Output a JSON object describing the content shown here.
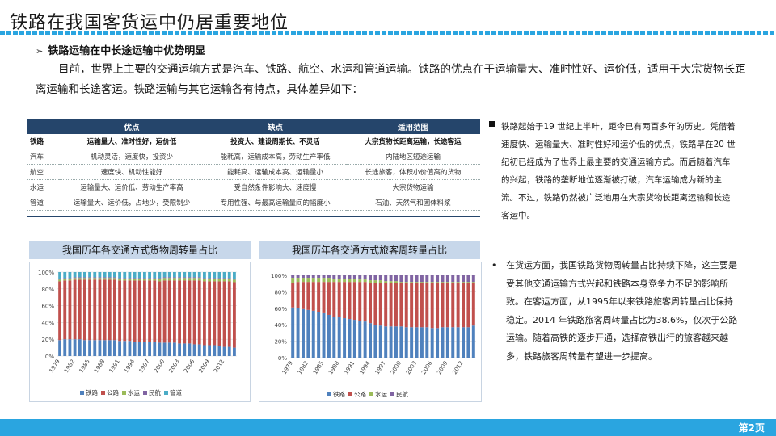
{
  "page": {
    "title": "铁路在我国客货运中仍居重要地位",
    "page_number": "第2页"
  },
  "section": {
    "arrow": "➢",
    "heading": "铁路运输在中长途运输中优势明显",
    "paragraph": "目前，世界上主要的交通运输方式是汽车、铁路、航空、水运和管道运输。铁路的优点在于运输量大、准时性好、运价低，适用于大宗货物长距离运输和长途客运。铁路运输与其它运输各有特点，具体差异如下："
  },
  "table": {
    "groups": [
      "优点",
      "缺点",
      "适用范围"
    ],
    "subheader": [
      "铁路",
      "运输量大、准时性好，运价低",
      "投资大、建设周期长、不灵活",
      "大宗货物长距离运输，长途客运"
    ],
    "rows": [
      [
        "汽车",
        "机动灵活，速度快，投资少",
        "能耗高，运输成本高，劳动生产率低",
        "内陆地区短途运输"
      ],
      [
        "航空",
        "速度快、机动性能好",
        "能耗高、运输成本高、运输量小",
        "长途旅客，体积小价值高的货物"
      ],
      [
        "水运",
        "运输量大、运价低、劳动生产率高",
        "受自然条件影响大、速度慢",
        "大宗货物运输"
      ],
      [
        "管道",
        "运输量大、运价低，占地少，受限制少",
        "专用性强、与最高运输量间的幅度小",
        "石油、天然气和固体料浆"
      ]
    ]
  },
  "side_note_1": "铁路起始于19 世纪上半叶，距今已有两百多年的历史。凭借着速度快、运输量大、准时性好和运价低的优点，铁路早在20 世纪初已经成为了世界上最主要的交通运输方式。而后随着汽车的兴起，铁路的垄断地位逐渐被打破，汽车运输成为新的主流。不过，铁路仍然被广泛地用在大宗货物长距离运输和长途客运中。",
  "side_note_2": {
    "bullet": "•",
    "text": "在货运方面，我国铁路货物周转量占比持续下降，这主要是受其他交通运输方式兴起和铁路本身竞争力不足的影响所致。在客运方面，从1995年以来铁路旅客周转量占比保持稳定。2014 年铁路旅客周转量占比为38.6%，仅次于公路运输。随着高铁的逐步开通，选择高铁出行的旅客越来越多，铁路旅客周转量有望进一步提高。"
  },
  "charts": {
    "freight_title": "我国历年各交通方式货物周转量占比",
    "passenger_title": "我国历年各交通方式旅客周转量占比"
  },
  "chart_data": [
    {
      "type": "bar",
      "stacked": true,
      "title": "我国历年各交通方式货物周转量占比",
      "x": [
        1979,
        1980,
        1981,
        1982,
        1983,
        1984,
        1985,
        1986,
        1987,
        1988,
        1989,
        1990,
        1991,
        1992,
        1993,
        1994,
        1995,
        1996,
        1997,
        1998,
        1999,
        2000,
        2001,
        2002,
        2003,
        2004,
        2005,
        2006,
        2007,
        2008,
        2009,
        2010,
        2011,
        2012,
        2013,
        2014
      ],
      "x_tick_labels": [
        "1979",
        "1982",
        "1985",
        "1988",
        "1991",
        "1994",
        "1997",
        "2000",
        "2003",
        "2006",
        "2009",
        "2012"
      ],
      "ylim": [
        0,
        100
      ],
      "y_tick_labels": [
        "0%",
        "20%",
        "40%",
        "60%",
        "80%",
        "100%"
      ],
      "legend": [
        "铁路",
        "公路",
        "水运",
        "民航",
        "管道"
      ],
      "legend_position": "bottom",
      "colors": [
        "#4f81bd",
        "#c0504d",
        "#9bbb59",
        "#8064a2",
        "#4bacc6"
      ],
      "series": [
        {
          "name": "铁路",
          "values": [
            19,
            20,
            20,
            20,
            20,
            19,
            19,
            19,
            19,
            19,
            19,
            19,
            18,
            18,
            18,
            17,
            17,
            17,
            17,
            17,
            16,
            16,
            16,
            16,
            15,
            15,
            15,
            14,
            14,
            13,
            13,
            13,
            12,
            11,
            11,
            10
          ]
        },
        {
          "name": "公路",
          "values": [
            70,
            70,
            70,
            71,
            71,
            72,
            72,
            72,
            72,
            72,
            72,
            72,
            72,
            72,
            72,
            73,
            73,
            73,
            73,
            73,
            73,
            74,
            74,
            74,
            75,
            75,
            75,
            76,
            76,
            76,
            76,
            76,
            77,
            78,
            78,
            78
          ]
        },
        {
          "name": "水运",
          "values": [
            2,
            2,
            2,
            2,
            2,
            2,
            2,
            2,
            2,
            2,
            2,
            2,
            2,
            2,
            2,
            2,
            2,
            2,
            2,
            2,
            3,
            3,
            3,
            3,
            3,
            3,
            3,
            3,
            3,
            3,
            3,
            3,
            3,
            3,
            3,
            3
          ]
        },
        {
          "name": "民航",
          "values": [
            1,
            1,
            1,
            1,
            1,
            1,
            1,
            1,
            1,
            1,
            1,
            1,
            1,
            1,
            1,
            1,
            1,
            1,
            1,
            1,
            1,
            1,
            1,
            1,
            1,
            1,
            1,
            1,
            1,
            1,
            1,
            1,
            1,
            1,
            1,
            1
          ]
        },
        {
          "name": "管道",
          "values": [
            8,
            7,
            7,
            6,
            6,
            6,
            6,
            6,
            6,
            6,
            6,
            6,
            7,
            7,
            7,
            7,
            7,
            7,
            7,
            7,
            7,
            6,
            6,
            6,
            6,
            6,
            6,
            6,
            6,
            7,
            7,
            7,
            7,
            7,
            7,
            8
          ]
        }
      ]
    },
    {
      "type": "bar",
      "stacked": true,
      "title": "我国历年各交通方式旅客周转量占比",
      "x": [
        1979,
        1980,
        1981,
        1982,
        1983,
        1984,
        1985,
        1986,
        1987,
        1988,
        1989,
        1990,
        1991,
        1992,
        1993,
        1994,
        1995,
        1996,
        1997,
        1998,
        1999,
        2000,
        2001,
        2002,
        2003,
        2004,
        2005,
        2006,
        2007,
        2008,
        2009,
        2010,
        2011,
        2012,
        2013,
        2014
      ],
      "x_tick_labels": [
        "1979",
        "1982",
        "1985",
        "1988",
        "1991",
        "1994",
        "1997",
        "2000",
        "2003",
        "2006",
        "2009",
        "2012"
      ],
      "ylim": [
        0,
        100
      ],
      "y_tick_labels": [
        "0%",
        "20%",
        "40%",
        "60%",
        "80%",
        "100%"
      ],
      "legend": [
        "铁路",
        "公路",
        "水运",
        "民航"
      ],
      "legend_position": "bottom",
      "colors": [
        "#4f81bd",
        "#c0504d",
        "#9bbb59",
        "#8064a2"
      ],
      "series": [
        {
          "name": "铁路",
          "values": [
            61,
            60,
            59,
            58,
            57,
            55,
            54,
            52,
            50,
            49,
            48,
            47,
            46,
            45,
            44,
            42,
            40,
            39,
            38,
            38,
            38,
            38,
            37,
            37,
            37,
            37,
            37,
            36,
            36,
            37,
            37,
            37,
            37,
            37,
            37,
            39
          ]
        },
        {
          "name": "公路",
          "values": [
            30,
            32,
            33,
            34,
            35,
            37,
            38,
            40,
            42,
            43,
            44,
            45,
            46,
            47,
            48,
            49,
            51,
            52,
            53,
            53,
            53,
            53,
            54,
            54,
            54,
            54,
            54,
            55,
            55,
            54,
            54,
            54,
            54,
            54,
            54,
            52
          ]
        },
        {
          "name": "水运",
          "values": [
            6,
            5,
            5,
            5,
            5,
            5,
            5,
            5,
            4,
            4,
            4,
            4,
            4,
            3,
            3,
            3,
            3,
            3,
            2,
            2,
            2,
            1,
            1,
            1,
            1,
            1,
            1,
            1,
            1,
            1,
            1,
            1,
            1,
            1,
            1,
            1
          ]
        },
        {
          "name": "民航",
          "values": [
            3,
            3,
            3,
            3,
            3,
            3,
            3,
            3,
            4,
            4,
            4,
            4,
            4,
            5,
            5,
            6,
            6,
            6,
            7,
            7,
            7,
            8,
            8,
            8,
            8,
            8,
            8,
            8,
            8,
            8,
            8,
            8,
            8,
            8,
            8,
            8
          ]
        }
      ]
    }
  ]
}
